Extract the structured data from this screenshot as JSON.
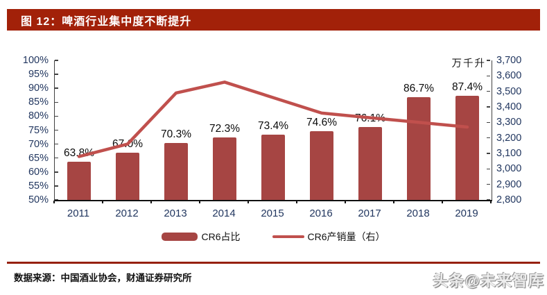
{
  "header": {
    "title": "图 12：啤酒行业集中度不断提升"
  },
  "chart_data": {
    "type": "bar+line",
    "categories": [
      "2011",
      "2012",
      "2013",
      "2014",
      "2015",
      "2016",
      "2017",
      "2018",
      "2019"
    ],
    "series": [
      {
        "name": "CR6占比",
        "type": "bar",
        "axis": "left",
        "unit": "%",
        "values": [
          63.8,
          67.0,
          70.3,
          72.3,
          73.4,
          74.6,
          76.1,
          86.7,
          87.4
        ],
        "labels": [
          "63.8%",
          "67.0%",
          "70.3%",
          "72.3%",
          "73.4%",
          "74.6%",
          "76.1%",
          "86.7%",
          "87.4%"
        ],
        "color": "#A64543"
      },
      {
        "name": "CR6产销量（右）",
        "type": "line",
        "axis": "right",
        "unit": "万千升",
        "values": [
          3080,
          3160,
          3490,
          3560,
          3460,
          3360,
          3330,
          3300,
          3270
        ],
        "color": "#C0504D"
      }
    ],
    "left_axis": {
      "min": 50,
      "max": 100,
      "step": 5,
      "tick_labels": [
        "100%",
        "95%",
        "90%",
        "85%",
        "80%",
        "75%",
        "70%",
        "65%",
        "60%",
        "55%",
        "50%"
      ]
    },
    "right_axis": {
      "min": 2800,
      "max": 3700,
      "step": 100,
      "tick_labels": [
        "3,700",
        "3,600",
        "3,500",
        "3,400",
        "3,300",
        "3,200",
        "3,100",
        "3,000",
        "2,900",
        "2,800"
      ]
    },
    "right_axis_unit": "万千升",
    "legend": {
      "position": "bottom",
      "items": [
        "CR6占比",
        "CR6产销量（右）"
      ]
    },
    "grid": false
  },
  "footer": {
    "source": "数据来源：中国酒业协会，财通证券研究所",
    "watermark": "头条@未来智库"
  }
}
